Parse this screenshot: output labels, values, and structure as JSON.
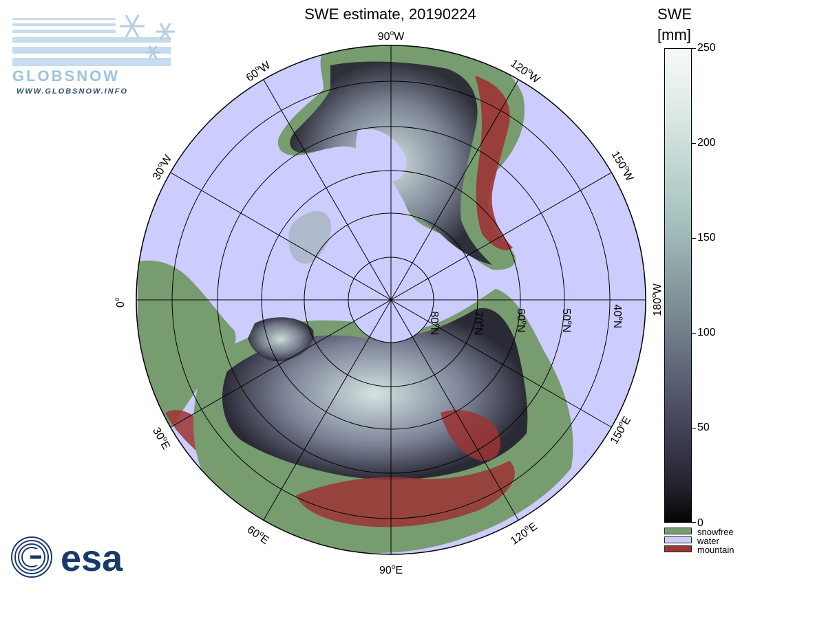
{
  "title": "SWE estimate, 20190224",
  "colorbar": {
    "title_line1": "SWE",
    "title_line2": "[mm]",
    "ticks": [
      "250",
      "200",
      "150",
      "100",
      "50",
      "0"
    ],
    "colors": {
      "top": "#f6faf8",
      "mid": "#7d8c94",
      "bottom": "#050506"
    }
  },
  "legend": [
    {
      "label": "snowfree",
      "color": "#779c70"
    },
    {
      "label": "water",
      "color": "#ccccff"
    },
    {
      "label": "mountain",
      "color": "#9c3434"
    }
  ],
  "map": {
    "longitude_labels": {
      "top": [
        "90",
        "W"
      ],
      "bottom": [
        "90",
        "E"
      ],
      "left": [
        "0",
        ""
      ],
      "right": [
        "180",
        "W"
      ],
      "nw60": [
        "60",
        "W"
      ],
      "nw30": [
        "30",
        "W"
      ],
      "ne120": [
        "120",
        "W"
      ],
      "ne150": [
        "150",
        "W"
      ],
      "sw30": [
        "30",
        "E"
      ],
      "sw60": [
        "60",
        "E"
      ],
      "se120": [
        "120",
        "E"
      ],
      "se150": [
        "150",
        "E"
      ]
    },
    "latitude_labels": [
      [
        "80",
        "N"
      ],
      [
        "70",
        "N"
      ],
      [
        "60",
        "N"
      ],
      [
        "50",
        "N"
      ],
      [
        "40",
        "N"
      ]
    ],
    "colors": {
      "ocean": "#ccccff",
      "snowfree": "#779c70",
      "mountain": "#9c3434",
      "snow_dark": "#2a2a36",
      "snow_mid": "#6e7286",
      "snow_light": "#c9dcd9"
    }
  },
  "logos": {
    "globsnow_name": "GLOBSNOW",
    "globsnow_url": "WWW.GLOBSNOW.INFO",
    "esa_name": "esa"
  }
}
